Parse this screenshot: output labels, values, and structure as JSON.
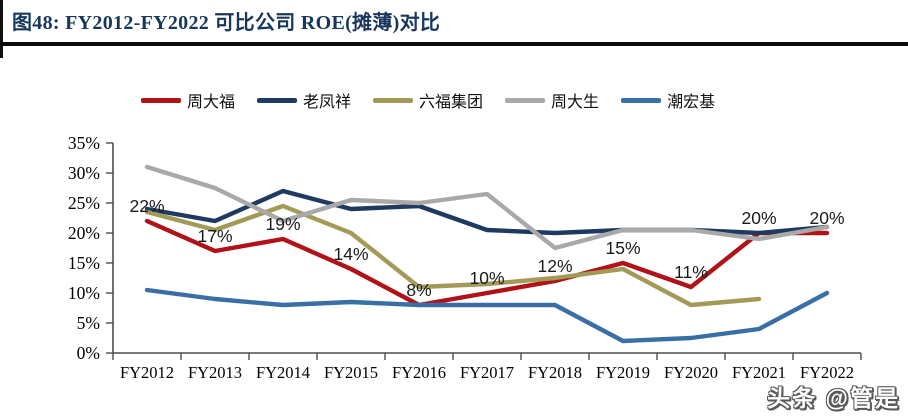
{
  "figure": {
    "title": "图48:  FY2012-FY2022 可比公司 ROE(摊薄)对比",
    "title_color": "#17375d"
  },
  "watermark": "头条 @管是",
  "chart_data": {
    "type": "line",
    "title": "FY2012-FY2022 可比公司 ROE(摊薄)对比",
    "categories": [
      "FY2012",
      "FY2013",
      "FY2014",
      "FY2015",
      "FY2016",
      "FY2017",
      "FY2018",
      "FY2019",
      "FY2020",
      "FY2021",
      "FY2022"
    ],
    "series": [
      {
        "name": "周大福",
        "color": "#b01218",
        "values": [
          22,
          17,
          19,
          14,
          8,
          10,
          12,
          15,
          11,
          20,
          20
        ],
        "labels": [
          "22%",
          "17%",
          "19%",
          "14%",
          "8%",
          "10%",
          "12%",
          "15%",
          "11%",
          "20%",
          "20%"
        ]
      },
      {
        "name": "老凤祥",
        "color": "#1f3a60",
        "values": [
          24,
          22,
          27,
          24,
          24.5,
          20.5,
          20,
          20.5,
          20.5,
          20,
          21
        ]
      },
      {
        "name": "六福集团",
        "color": "#a39a58",
        "values": [
          23.5,
          20.5,
          24.5,
          20,
          11,
          11.5,
          12.5,
          14,
          8,
          9,
          null
        ]
      },
      {
        "name": "周大生",
        "color": "#a9a9a9",
        "values": [
          31,
          27.5,
          22,
          25.5,
          25,
          26.5,
          17.5,
          20.5,
          20.5,
          19,
          21
        ]
      },
      {
        "name": "潮宏基",
        "color": "#3a6fa5",
        "values": [
          10.5,
          9,
          8,
          8.5,
          8,
          8,
          8,
          2,
          2.5,
          4,
          10
        ]
      }
    ],
    "xlabel": "",
    "ylabel": "",
    "ylim": [
      0,
      35
    ],
    "ytick_step": 5,
    "yticks": [
      "0%",
      "5%",
      "10%",
      "15%",
      "20%",
      "25%",
      "30%",
      "35%"
    ],
    "grid": false,
    "legend_position": "top"
  }
}
